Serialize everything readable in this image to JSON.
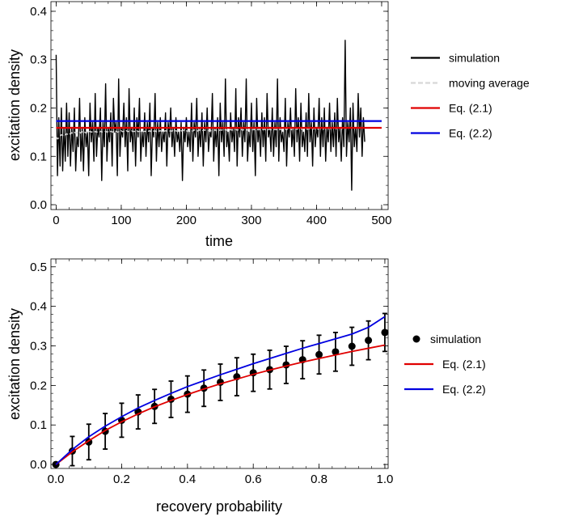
{
  "chart_data": [
    {
      "type": "line",
      "title": "",
      "xlabel": "time",
      "ylabel": "excitation density",
      "xlim": [
        -8,
        510
      ],
      "ylim": [
        -0.01,
        0.42
      ],
      "xticks": [
        0,
        100,
        200,
        300,
        400,
        500
      ],
      "yticks": [
        0.0,
        0.1,
        0.2,
        0.3,
        0.4
      ],
      "grid": false,
      "legend_position": "right",
      "series": [
        {
          "name": "simulation",
          "color": "#000000",
          "style": "solid",
          "x_start": 0,
          "x_step": 2,
          "values": [
            0.31,
            0.06,
            0.18,
            0.08,
            0.2,
            0.07,
            0.16,
            0.09,
            0.21,
            0.1,
            0.19,
            0.08,
            0.16,
            0.11,
            0.2,
            0.07,
            0.14,
            0.12,
            0.22,
            0.09,
            0.16,
            0.07,
            0.18,
            0.12,
            0.15,
            0.06,
            0.21,
            0.13,
            0.17,
            0.09,
            0.23,
            0.1,
            0.16,
            0.14,
            0.2,
            0.05,
            0.17,
            0.12,
            0.25,
            0.09,
            0.16,
            0.13,
            0.19,
            0.08,
            0.22,
            0.15,
            0.17,
            0.06,
            0.26,
            0.1,
            0.16,
            0.14,
            0.21,
            0.12,
            0.18,
            0.07,
            0.24,
            0.13,
            0.16,
            0.11,
            0.2,
            0.08,
            0.18,
            0.14,
            0.22,
            0.09,
            0.15,
            0.12,
            0.19,
            0.1,
            0.17,
            0.13,
            0.21,
            0.06,
            0.16,
            0.14,
            0.23,
            0.09,
            0.17,
            0.12,
            0.18,
            0.11,
            0.15,
            0.13,
            0.19,
            0.08,
            0.17,
            0.14,
            0.2,
            0.12,
            0.16,
            0.1,
            0.18,
            0.13,
            0.15,
            0.11,
            0.17,
            0.05,
            0.16,
            0.13,
            0.18,
            0.12,
            0.15,
            0.11,
            0.21,
            0.09,
            0.17,
            0.14,
            0.22,
            0.1,
            0.16,
            0.12,
            0.19,
            0.08,
            0.17,
            0.13,
            0.2,
            0.11,
            0.15,
            0.14,
            0.23,
            0.09,
            0.16,
            0.12,
            0.18,
            0.06,
            0.21,
            0.13,
            0.17,
            0.1,
            0.26,
            0.12,
            0.15,
            0.09,
            0.19,
            0.13,
            0.16,
            0.11,
            0.24,
            0.08,
            0.18,
            0.14,
            0.2,
            0.1,
            0.17,
            0.13,
            0.26,
            0.09,
            0.15,
            0.12,
            0.21,
            0.11,
            0.17,
            0.06,
            0.22,
            0.13,
            0.16,
            0.1,
            0.19,
            0.12,
            0.18,
            0.09,
            0.23,
            0.14,
            0.16,
            0.11,
            0.2,
            0.1,
            0.17,
            0.12,
            0.26,
            0.09,
            0.18,
            0.13,
            0.15,
            0.11,
            0.22,
            0.08,
            0.17,
            0.14,
            0.2,
            0.12,
            0.16,
            0.1,
            0.24,
            0.13,
            0.18,
            0.09,
            0.21,
            0.12,
            0.15,
            0.11,
            0.19,
            0.1,
            0.23,
            0.13,
            0.17,
            0.08,
            0.2,
            0.12,
            0.16,
            0.14,
            0.22,
            0.1,
            0.18,
            0.12,
            0.2,
            0.09,
            0.16,
            0.13,
            0.21,
            0.11,
            0.17,
            0.12,
            0.19,
            0.1,
            0.22,
            0.13,
            0.16,
            0.09,
            0.18,
            0.12,
            0.34,
            0.1,
            0.17,
            0.13,
            0.2,
            0.03,
            0.21,
            0.12,
            0.16,
            0.11,
            0.23,
            0.14,
            0.2,
            0.1,
            0.18,
            0.13
          ]
        },
        {
          "name": "moving average",
          "color": "#d7d7d7",
          "style": "dashed",
          "x_start": 0,
          "x_step": 2,
          "values": [
            0.14,
            0.136,
            0.138,
            0.142,
            0.145,
            0.143,
            0.146,
            0.144,
            0.147,
            0.145,
            0.148,
            0.146,
            0.149,
            0.147,
            0.15,
            0.148,
            0.149,
            0.147,
            0.15,
            0.148,
            0.151,
            0.149,
            0.15,
            0.148,
            0.151,
            0.149,
            0.152,
            0.15,
            0.151,
            0.149,
            0.152,
            0.15,
            0.151,
            0.149,
            0.152,
            0.15,
            0.151,
            0.15,
            0.152,
            0.15,
            0.151,
            0.149,
            0.152,
            0.15,
            0.151,
            0.15,
            0.152,
            0.15,
            0.151,
            0.15,
            0.153,
            0.151,
            0.152,
            0.15,
            0.153,
            0.151,
            0.152,
            0.151,
            0.153,
            0.151,
            0.152,
            0.15,
            0.153,
            0.151,
            0.152,
            0.151,
            0.153,
            0.151,
            0.152,
            0.151,
            0.153,
            0.152,
            0.153,
            0.151,
            0.154,
            0.152,
            0.153,
            0.151,
            0.154,
            0.152,
            0.153,
            0.152,
            0.154,
            0.152,
            0.153,
            0.152,
            0.154,
            0.152,
            0.153,
            0.152,
            0.154,
            0.152,
            0.153,
            0.152,
            0.154,
            0.152,
            0.153,
            0.152,
            0.154,
            0.152,
            0.153,
            0.152,
            0.154,
            0.153,
            0.154,
            0.152,
            0.155,
            0.153,
            0.154,
            0.152,
            0.155,
            0.153,
            0.154,
            0.153,
            0.155,
            0.153,
            0.154,
            0.153,
            0.155,
            0.153,
            0.154,
            0.153,
            0.155,
            0.153,
            0.154,
            0.153,
            0.155,
            0.154,
            0.155,
            0.153,
            0.156,
            0.154,
            0.155,
            0.153,
            0.156,
            0.154,
            0.155,
            0.154,
            0.156,
            0.154,
            0.155,
            0.154,
            0.156,
            0.154,
            0.155,
            0.154,
            0.156,
            0.154,
            0.155,
            0.154,
            0.156,
            0.155,
            0.156,
            0.154,
            0.157,
            0.155,
            0.156,
            0.154,
            0.157,
            0.155,
            0.156,
            0.155,
            0.157,
            0.155,
            0.156,
            0.155,
            0.157,
            0.155,
            0.156,
            0.155,
            0.157,
            0.155,
            0.156,
            0.155,
            0.157,
            0.156,
            0.157,
            0.155,
            0.158,
            0.156,
            0.157,
            0.155,
            0.158,
            0.156,
            0.157,
            0.156,
            0.158,
            0.156,
            0.157,
            0.156,
            0.158,
            0.156,
            0.157,
            0.156,
            0.158,
            0.156,
            0.157,
            0.156,
            0.158,
            0.157,
            0.158,
            0.156,
            0.159,
            0.157,
            0.158,
            0.156,
            0.159,
            0.157,
            0.158,
            0.157,
            0.159,
            0.157,
            0.158,
            0.157,
            0.159,
            0.157,
            0.158,
            0.157,
            0.159,
            0.157,
            0.158,
            0.157,
            0.159,
            0.158,
            0.159,
            0.157,
            0.16,
            0.158,
            0.159,
            0.157,
            0.16,
            0.158,
            0.159,
            0.158
          ]
        },
        {
          "name": "Eq. (2.1)",
          "color": "#e00000",
          "style": "solid",
          "x": [
            0,
            500
          ],
          "values": [
            0.159,
            0.159
          ]
        },
        {
          "name": "Eq. (2.2)",
          "color": "#0000e0",
          "style": "solid",
          "x": [
            0,
            500
          ],
          "values": [
            0.173,
            0.173
          ]
        }
      ]
    },
    {
      "type": "scatter",
      "title": "",
      "xlabel": "recovery probability",
      "ylabel": "excitation density",
      "xlim": [
        -0.015,
        1.01
      ],
      "ylim": [
        -0.01,
        0.52
      ],
      "xticks": [
        0.0,
        0.2,
        0.4,
        0.6,
        0.8,
        1.0
      ],
      "yticks": [
        0.0,
        0.1,
        0.2,
        0.3,
        0.4,
        0.5
      ],
      "grid": false,
      "legend_position": "right",
      "series": [
        {
          "name": "simulation",
          "color": "#000000",
          "marker": "circle",
          "x": [
            0.0,
            0.05,
            0.1,
            0.15,
            0.2,
            0.25,
            0.3,
            0.35,
            0.4,
            0.45,
            0.5,
            0.55,
            0.6,
            0.65,
            0.7,
            0.75,
            0.8,
            0.85,
            0.9,
            0.95,
            1.0
          ],
          "y": [
            0.0,
            0.034,
            0.057,
            0.084,
            0.112,
            0.133,
            0.147,
            0.165,
            0.178,
            0.193,
            0.208,
            0.222,
            0.232,
            0.24,
            0.252,
            0.265,
            0.278,
            0.285,
            0.299,
            0.314,
            0.334
          ],
          "error": [
            0.0,
            0.037,
            0.045,
            0.045,
            0.043,
            0.043,
            0.043,
            0.046,
            0.046,
            0.046,
            0.046,
            0.048,
            0.047,
            0.049,
            0.047,
            0.048,
            0.049,
            0.049,
            0.048,
            0.049,
            0.048
          ]
        },
        {
          "name": "Eq. (2.1)",
          "color": "#e00000",
          "type": "line",
          "x": [
            0.0,
            0.05,
            0.1,
            0.15,
            0.2,
            0.25,
            0.3,
            0.35,
            0.4,
            0.45,
            0.5,
            0.55,
            0.6,
            0.65,
            0.7,
            0.75,
            0.8,
            0.85,
            0.9,
            0.95,
            1.0
          ],
          "y": [
            0.0,
            0.032,
            0.06,
            0.086,
            0.108,
            0.128,
            0.146,
            0.162,
            0.177,
            0.191,
            0.204,
            0.216,
            0.228,
            0.239,
            0.249,
            0.259,
            0.268,
            0.277,
            0.286,
            0.294,
            0.302
          ]
        },
        {
          "name": "Eq. (2.2)",
          "color": "#0000e0",
          "type": "line",
          "x": [
            0.0,
            0.05,
            0.1,
            0.15,
            0.2,
            0.25,
            0.3,
            0.35,
            0.4,
            0.45,
            0.5,
            0.55,
            0.6,
            0.65,
            0.7,
            0.75,
            0.8,
            0.85,
            0.9,
            0.95,
            1.0
          ],
          "y": [
            0.0,
            0.038,
            0.07,
            0.097,
            0.121,
            0.143,
            0.162,
            0.18,
            0.197,
            0.212,
            0.227,
            0.241,
            0.255,
            0.268,
            0.281,
            0.294,
            0.306,
            0.318,
            0.33,
            0.347,
            0.374
          ]
        }
      ]
    }
  ]
}
